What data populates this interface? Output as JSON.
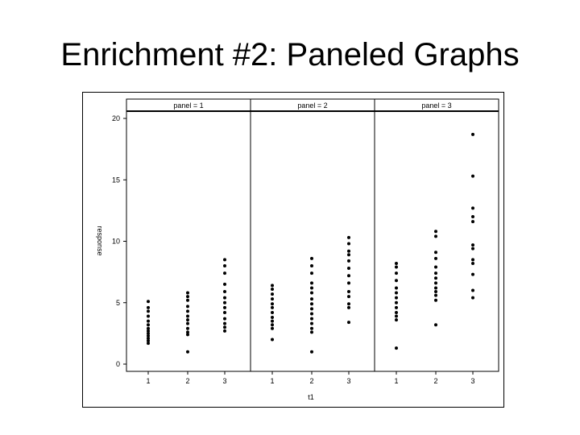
{
  "slide": {
    "title": "Enrichment #2: Paneled Graphs"
  },
  "chart_data": {
    "type": "scatter",
    "layout": "paneled",
    "xlabel": "t1",
    "ylabel": "response",
    "ylim": [
      0,
      20
    ],
    "yticks": [
      0,
      5,
      10,
      15,
      20
    ],
    "x_categories": [
      "1",
      "2",
      "3"
    ],
    "grid": false,
    "point_color": "#000000",
    "panels": [
      {
        "label": "panel = 1",
        "points": {
          "1": [
            5.1,
            4.6,
            4.3,
            3.9,
            3.5,
            3.2,
            2.9,
            2.7,
            2.5,
            2.3,
            2.1,
            1.9,
            1.7
          ],
          "2": [
            5.8,
            5.5,
            5.2,
            4.7,
            4.3,
            3.9,
            3.6,
            3.3,
            2.9,
            2.6,
            2.4,
            1.0
          ],
          "3": [
            8.5,
            8.0,
            7.4,
            6.5,
            5.9,
            5.4,
            5.0,
            4.6,
            4.2,
            3.7,
            3.3,
            3.0,
            2.7
          ]
        }
      },
      {
        "label": "panel = 2",
        "points": {
          "1": [
            6.4,
            6.1,
            5.7,
            5.3,
            4.9,
            4.6,
            4.2,
            3.8,
            3.5,
            3.2,
            2.9,
            2.0
          ],
          "2": [
            8.6,
            8.0,
            7.4,
            6.6,
            6.2,
            5.8,
            5.3,
            4.9,
            4.5,
            4.1,
            3.7,
            3.3,
            2.9,
            2.6,
            1.0
          ],
          "3": [
            10.3,
            9.8,
            9.2,
            8.9,
            8.4,
            7.8,
            7.2,
            6.6,
            5.9,
            5.5,
            4.9,
            4.6,
            3.4
          ]
        }
      },
      {
        "label": "panel = 3",
        "points": {
          "1": [
            8.2,
            7.9,
            7.4,
            6.8,
            6.2,
            5.8,
            5.4,
            5.0,
            4.6,
            4.2,
            3.9,
            3.6,
            1.3
          ],
          "2": [
            10.8,
            10.4,
            9.1,
            8.6,
            7.9,
            7.4,
            7.0,
            6.6,
            6.2,
            5.9,
            5.6,
            5.2,
            3.2
          ],
          "3": [
            18.7,
            15.3,
            12.7,
            12.0,
            11.6,
            9.7,
            9.4,
            8.5,
            8.2,
            7.3,
            6.0,
            5.4
          ]
        }
      }
    ]
  }
}
